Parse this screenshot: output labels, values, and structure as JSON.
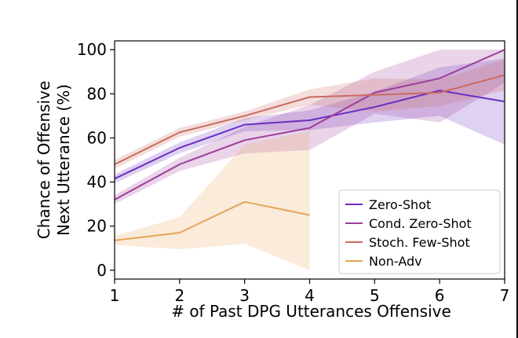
{
  "chart_data": {
    "type": "line",
    "title": "",
    "xlabel": "# of Past DPG Utterances Offensive",
    "ylabel_lines": [
      "Chance of Offensive",
      "Next Utterance (%)"
    ],
    "xlim": [
      1,
      7
    ],
    "ylim": [
      -4,
      104
    ],
    "xticks": [
      1,
      2,
      3,
      4,
      5,
      6,
      7
    ],
    "yticks": [
      0,
      20,
      40,
      60,
      80,
      100
    ],
    "grid": false,
    "legend_position": "lower-right",
    "series": [
      {
        "name": "Zero-Shot",
        "color": "#6a2ec0",
        "x": [
          1,
          2,
          3,
          4,
          5,
          6,
          7
        ],
        "values": [
          41.5,
          55.5,
          66,
          68,
          74,
          81.5,
          76.5
        ],
        "lower": [
          39.5,
          53,
          63,
          63.5,
          67,
          70,
          57
        ],
        "upper": [
          43.5,
          58,
          69,
          72.5,
          81,
          92,
          96
        ]
      },
      {
        "name": "Cond. Zero-Shot",
        "color": "#9c3d99",
        "x": [
          1,
          2,
          3,
          4,
          5,
          6,
          7
        ],
        "values": [
          32,
          48,
          59,
          64.5,
          80.5,
          87,
          100
        ],
        "lower": [
          30,
          45,
          53,
          54.5,
          71,
          67,
          85
        ],
        "upper": [
          34,
          51,
          65,
          75,
          90,
          100,
          100
        ]
      },
      {
        "name": "Stoch. Few-Shot",
        "color": "#c96b60",
        "x": [
          1,
          2,
          3,
          4,
          5,
          6,
          7
        ],
        "values": [
          48,
          62.5,
          70,
          78.5,
          79.5,
          80.5,
          88.5
        ],
        "lower": [
          46,
          60.5,
          68,
          75,
          72,
          74.5,
          81.5
        ],
        "upper": [
          50,
          64.5,
          72,
          82,
          87,
          86.5,
          95.5
        ]
      },
      {
        "name": "Non-Adv",
        "color": "#e8a45a",
        "x": [
          1,
          2,
          3,
          4
        ],
        "values": [
          13.5,
          17,
          31,
          25
        ],
        "lower": [
          11.5,
          9.5,
          12,
          0
        ],
        "upper": [
          15.5,
          24,
          57,
          63
        ]
      }
    ]
  }
}
